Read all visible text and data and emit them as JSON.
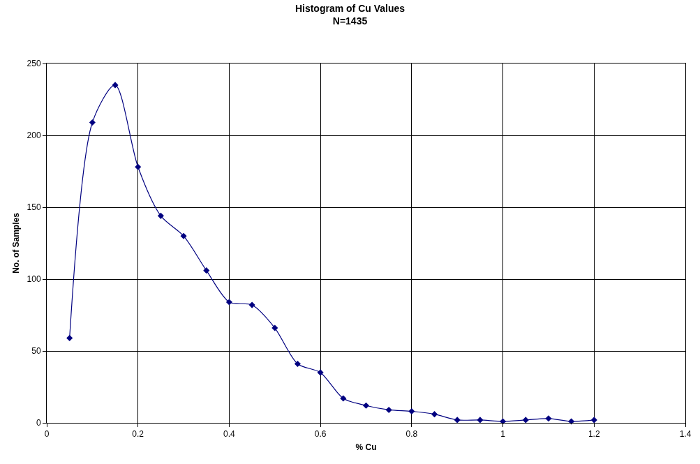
{
  "chart_data": {
    "type": "line",
    "title": "Histogram of Cu Values",
    "subtitle": "N=1435",
    "xlabel": "% Cu",
    "ylabel": "No. of Samples",
    "x": [
      0.05,
      0.1,
      0.15,
      0.2,
      0.25,
      0.3,
      0.35,
      0.4,
      0.45,
      0.5,
      0.55,
      0.6,
      0.65,
      0.7,
      0.75,
      0.8,
      0.85,
      0.9,
      0.95,
      1.0,
      1.05,
      1.1,
      1.15,
      1.2
    ],
    "series": [
      {
        "color": "#000080",
        "values": [
          59,
          209,
          235,
          178,
          144,
          130,
          106,
          84,
          82,
          66,
          41,
          35,
          17,
          12,
          9,
          8,
          6,
          2,
          2,
          1,
          2,
          3,
          1,
          2
        ]
      }
    ],
    "xlim": [
      0,
      1.4
    ],
    "xticks": [
      0,
      0.2,
      0.4,
      0.6,
      0.8,
      1,
      1.2,
      1.4
    ],
    "ylim": [
      0,
      250
    ],
    "yticks": [
      0,
      50,
      100,
      150,
      200,
      250
    ],
    "grid": true,
    "marker": "diamond",
    "line_style": "solid"
  }
}
